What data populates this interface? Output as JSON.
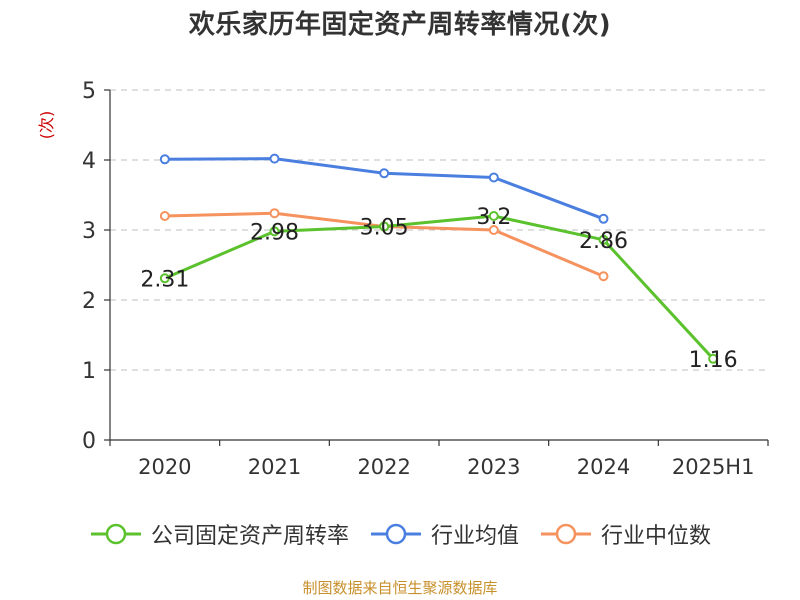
{
  "title": "欢乐家历年固定资产周转率情况(次)",
  "source": "制图数据来自恒生聚源数据库",
  "colors": {
    "company": "#5bc22e",
    "industry_avg": "#4a7fe0",
    "industry_median": "#f5925e",
    "ylabel": "#cc0000",
    "grid": "#cccccc",
    "axis": "#333333",
    "text": "#333333"
  },
  "chart_data": {
    "type": "line",
    "title": "欢乐家历年固定资产周转率情况(次)",
    "xlabel": "",
    "ylabel": "(次)",
    "categories": [
      "2020",
      "2021",
      "2022",
      "2023",
      "2024",
      "2025H1"
    ],
    "ylim": [
      0,
      5
    ],
    "yticks": [
      0,
      1,
      2,
      3,
      4,
      5
    ],
    "grid": true,
    "legend_position": "bottom",
    "series": [
      {
        "name": "公司固定资产周转率",
        "key": "company",
        "values": [
          2.31,
          2.98,
          3.05,
          3.2,
          2.86,
          1.16
        ],
        "data_labels": [
          "2.31",
          "2.98",
          "3.05",
          "3.2",
          "2.86",
          "1.16"
        ]
      },
      {
        "name": "行业均值",
        "key": "industry_avg",
        "values": [
          4.01,
          4.02,
          3.81,
          3.75,
          3.16,
          null
        ]
      },
      {
        "name": "行业中位数",
        "key": "industry_median",
        "values": [
          3.2,
          3.24,
          3.05,
          3.0,
          2.34,
          null
        ]
      }
    ]
  }
}
